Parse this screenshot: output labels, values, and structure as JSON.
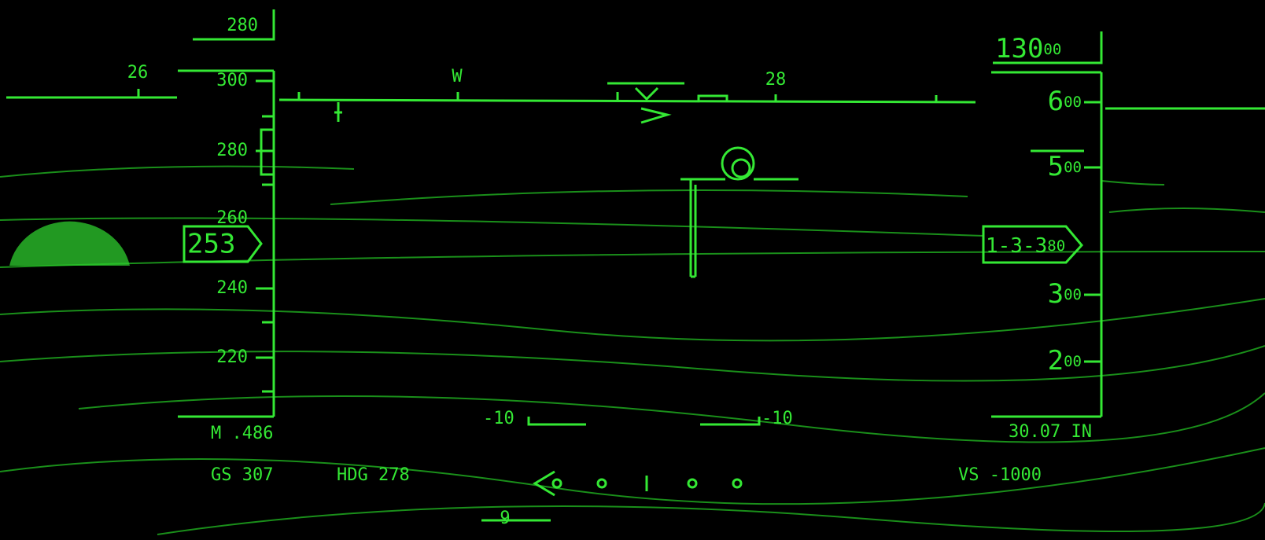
{
  "heading_tape": {
    "labels": [
      "26",
      "W",
      "28"
    ]
  },
  "speed_tape": {
    "selected": "280",
    "labels": [
      "300",
      "280",
      "260",
      "240",
      "220"
    ],
    "current": "253"
  },
  "altitude_tape": {
    "selected_main": "130",
    "selected_small": "00",
    "labels": [
      {
        "main": "6",
        "small": "00"
      },
      {
        "main": "5",
        "small": "00"
      },
      {
        "main": "3",
        "small": "00"
      },
      {
        "main": "2",
        "small": "00"
      }
    ],
    "current_main": "1-3-3",
    "current_small": "80"
  },
  "pitch_ladder": {
    "left": "-10",
    "right": "-10"
  },
  "readouts": {
    "mach": "M .486",
    "ground_speed": "GS 307",
    "heading": "HDG 278",
    "baro": "30.07 IN",
    "vertical_speed": "VS -1000",
    "bottom": "9"
  }
}
